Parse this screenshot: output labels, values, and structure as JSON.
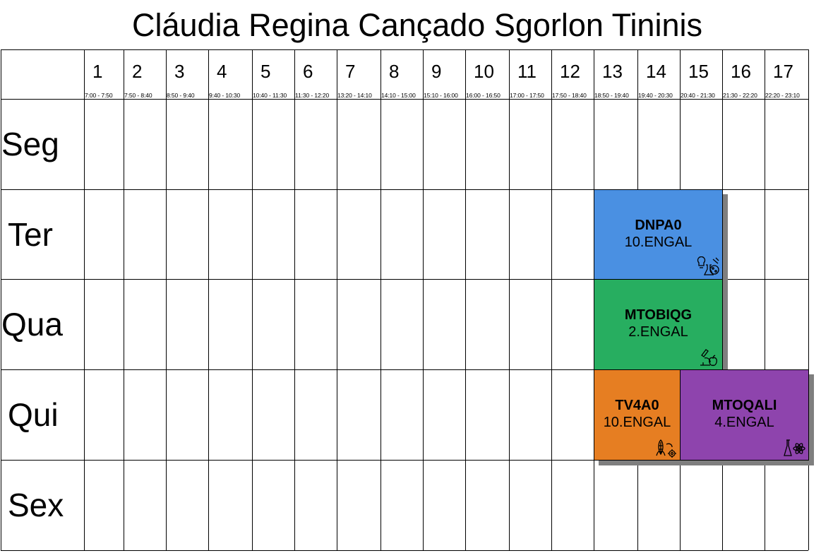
{
  "title": "Cláudia Regina Cançado Sgorlon Tininis",
  "periods": [
    {
      "num": "1",
      "time": "7:00 - 7:50"
    },
    {
      "num": "2",
      "time": "7:50 - 8:40"
    },
    {
      "num": "3",
      "time": "8:50 - 9:40"
    },
    {
      "num": "4",
      "time": "9:40 - 10:30"
    },
    {
      "num": "5",
      "time": "10:40 - 11:30"
    },
    {
      "num": "6",
      "time": "11:30 - 12:20"
    },
    {
      "num": "7",
      "time": "13:20 - 14:10"
    },
    {
      "num": "8",
      "time": "14:10 - 15:00"
    },
    {
      "num": "9",
      "time": "15:10 - 16:00"
    },
    {
      "num": "10",
      "time": "16:00 - 16:50"
    },
    {
      "num": "11",
      "time": "17:00 - 17:50"
    },
    {
      "num": "12",
      "time": "17:50 - 18:40"
    },
    {
      "num": "13",
      "time": "18:50 - 19:40"
    },
    {
      "num": "14",
      "time": "19:40 - 20:30"
    },
    {
      "num": "15",
      "time": "20:40 - 21:30"
    },
    {
      "num": "16",
      "time": "21:30 - 22:20"
    },
    {
      "num": "17",
      "time": "22:20 - 23:10"
    }
  ],
  "days": [
    "Seg",
    "Ter",
    "Qua",
    "Qui",
    "Sex"
  ],
  "classes": [
    {
      "code": "DNPA0",
      "group": "10.ENGAL",
      "day": "Ter",
      "periods": [
        "13",
        "14",
        "15"
      ],
      "color": "#4a90e2",
      "icon": "lab-bacteria-icon"
    },
    {
      "code": "MTOBIQG",
      "group": "2.ENGAL",
      "day": "Qua",
      "periods": [
        "13",
        "14",
        "15"
      ],
      "color": "#27ae60",
      "icon": "microscope-apple-icon"
    },
    {
      "code": "TV4A0",
      "group": "10.ENGAL",
      "day": "Qui",
      "periods": [
        "13",
        "14"
      ],
      "color": "#e67e22",
      "icon": "corn-gear-icon"
    },
    {
      "code": "MTOQALI",
      "group": "4.ENGAL",
      "day": "Qui",
      "periods": [
        "15",
        "16",
        "17"
      ],
      "color": "#8e44ad",
      "icon": "flask-atom-icon"
    }
  ]
}
